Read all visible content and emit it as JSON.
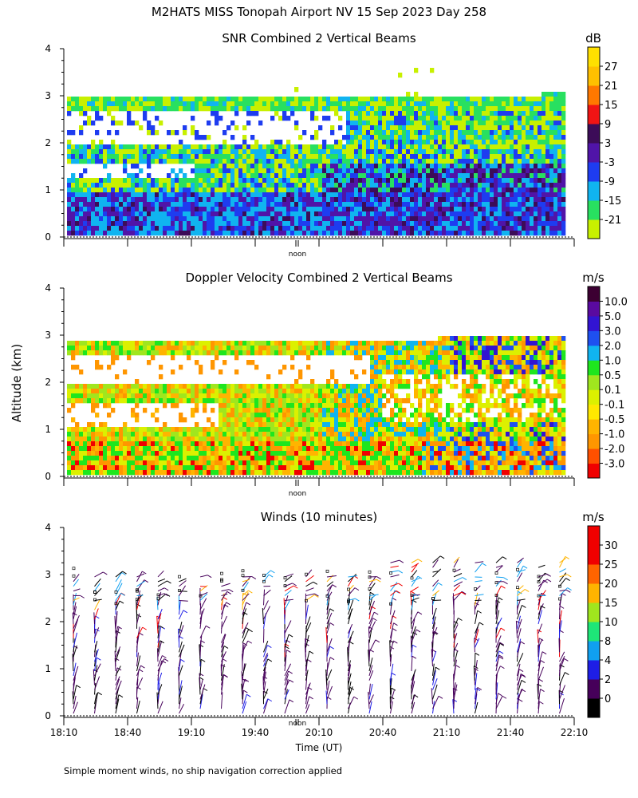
{
  "title": "M2HATS MISS Tonopah Airport NV  15 Sep 2023 Day 258",
  "y_axis_label": "Altitude (km)",
  "x_axis_label": "Time (UT)",
  "noon_label": "noon",
  "footnote": "Simple moment winds, no ship navigation correction applied",
  "chart_data": [
    {
      "type": "heatmap",
      "name": "snr",
      "title": "SNR Combined 2 Vertical Beams",
      "unit": "dB",
      "ylim": [
        0,
        4
      ],
      "yticks": [
        "0",
        "1",
        "2",
        "3",
        "4"
      ],
      "colorbar": {
        "labels": [
          "-21",
          "-15",
          "-9",
          "-3",
          "3",
          "9",
          "15",
          "21",
          "27"
        ],
        "colors": [
          "#c8f000",
          "#28e060",
          "#10b4f0",
          "#1e3cf0",
          "#5014a8",
          "#3c0c58",
          "#f01414",
          "#ff7800",
          "#ffc000",
          "#ffe000"
        ]
      }
    },
    {
      "type": "heatmap",
      "name": "doppler",
      "title": "Doppler Velocity Combined 2 Vertical Beams",
      "unit": "m/s",
      "ylim": [
        0,
        4
      ],
      "yticks": [
        "0",
        "1",
        "2",
        "3",
        "4"
      ],
      "colorbar": {
        "labels": [
          "-3.0",
          "-2.0",
          "-1.0",
          "-0.5",
          "-0.1",
          "0.1",
          "0.5",
          "1.0",
          "2.0",
          "3.0",
          "5.0",
          "10.0"
        ],
        "colors": [
          "#f00000",
          "#ff5000",
          "#ff9600",
          "#ffb400",
          "#ffe800",
          "#dcf000",
          "#a0e61e",
          "#1ee61e",
          "#10b4f0",
          "#1e50f0",
          "#3214d2",
          "#5a0aa0",
          "#3c0032"
        ]
      }
    },
    {
      "type": "scatter",
      "name": "winds",
      "title": "Winds (10 minutes)",
      "unit": "m/s",
      "ylim": [
        0,
        4
      ],
      "yticks": [
        "0",
        "1",
        "2",
        "3",
        "4"
      ],
      "xlim": [
        "18:10",
        "22:10"
      ],
      "xticks": [
        "18:10",
        "18:40",
        "19:10",
        "19:40",
        "20:10",
        "20:40",
        "21:10",
        "21:40",
        "22:10"
      ],
      "colorbar": {
        "labels": [
          "0",
          "2",
          "4",
          "8",
          "10",
          "15",
          "20",
          "25",
          "30"
        ],
        "colors": [
          "#000000",
          "#46005a",
          "#1e1ee6",
          "#10a0f0",
          "#1ee678",
          "#a0e61e",
          "#ffb400",
          "#ff6400",
          "#f00000",
          "#f00000"
        ]
      }
    }
  ]
}
